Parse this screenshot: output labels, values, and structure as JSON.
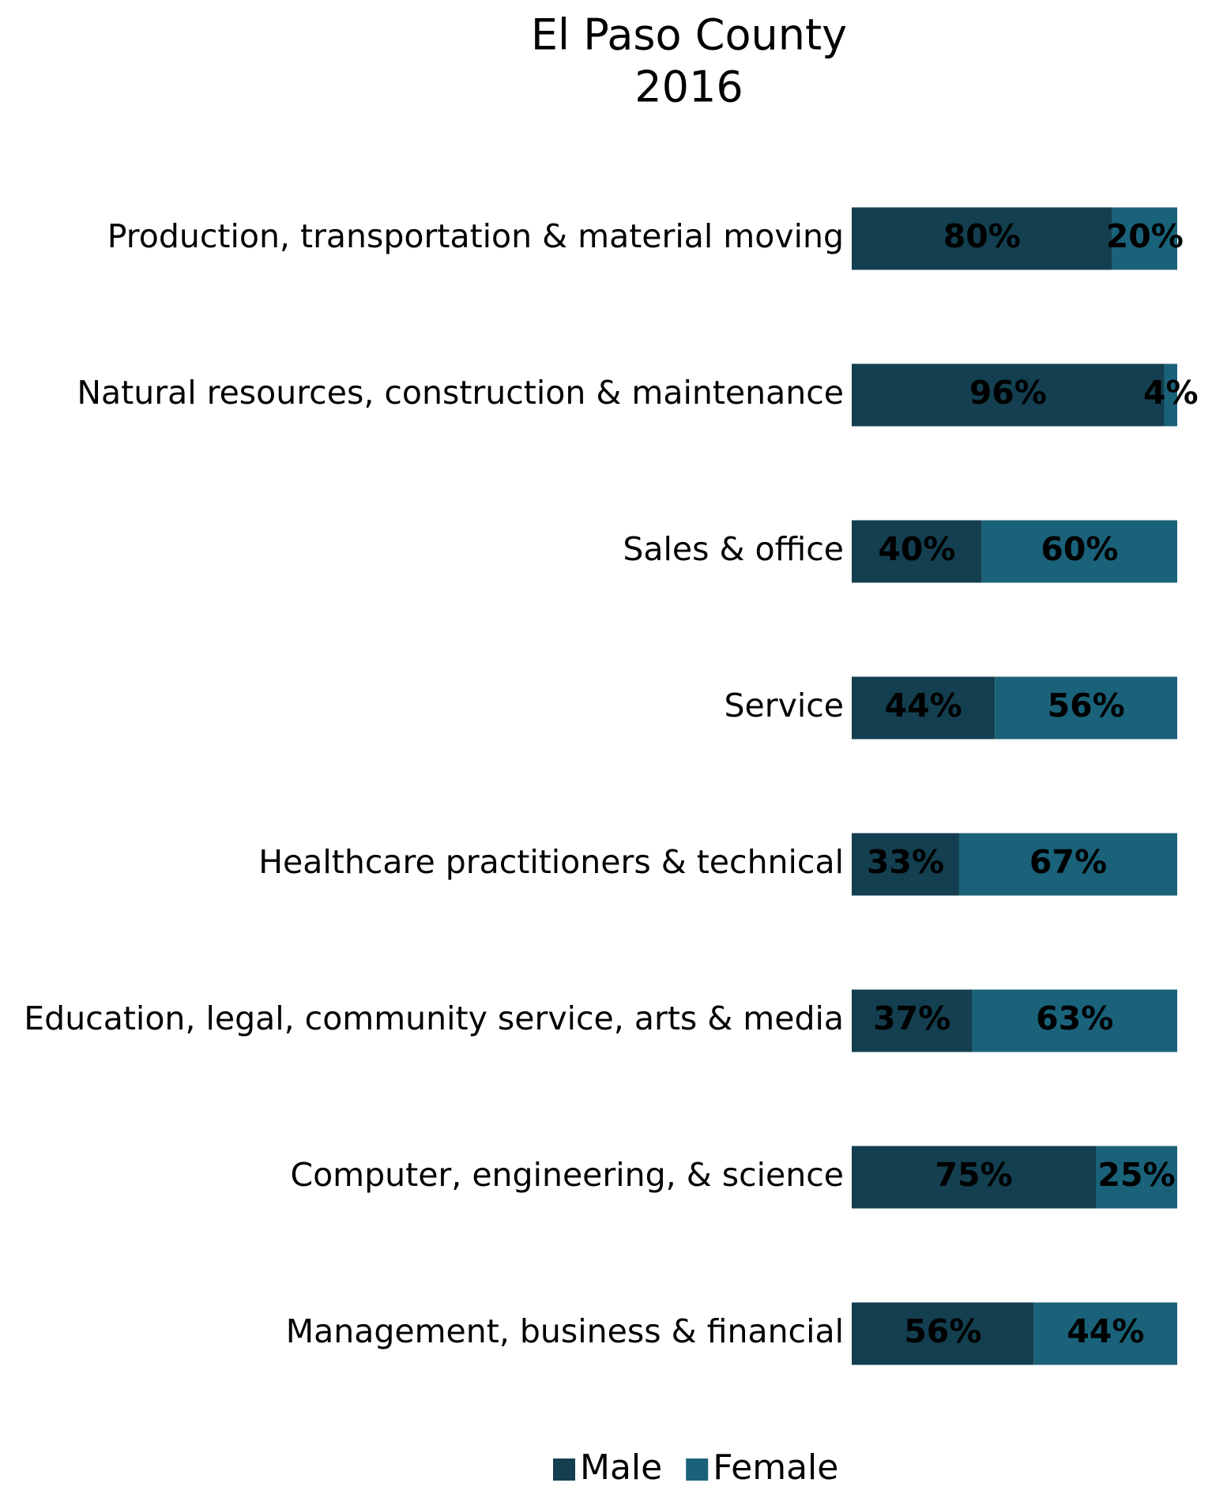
{
  "chart_data": {
    "type": "bar",
    "orientation": "horizontal",
    "stacked": true,
    "title": "El Paso County",
    "subtitle": "2016",
    "categories": [
      "Production, transportation & material moving",
      "Natural resources, construction & maintenance",
      "Sales & office",
      "Service",
      "Healthcare practitioners & technical",
      "Education, legal, community service, arts & media",
      "Computer, engineering, & science",
      "Management, business & financial"
    ],
    "series": [
      {
        "name": "Male",
        "color": "#133f50",
        "values": [
          80,
          96,
          40,
          44,
          33,
          37,
          75,
          56
        ],
        "value_labels": [
          "80%",
          "96%",
          "40%",
          "44%",
          "33%",
          "37%",
          "75%",
          "56%"
        ]
      },
      {
        "name": "Female",
        "color": "#1a627a",
        "values": [
          20,
          4,
          60,
          56,
          67,
          63,
          25,
          44
        ],
        "value_labels": [
          "20%",
          "4%",
          "60%",
          "56%",
          "67%",
          "63%",
          "25%",
          "44%"
        ]
      }
    ],
    "xlim": [
      0,
      100
    ],
    "legend": "bottom"
  }
}
